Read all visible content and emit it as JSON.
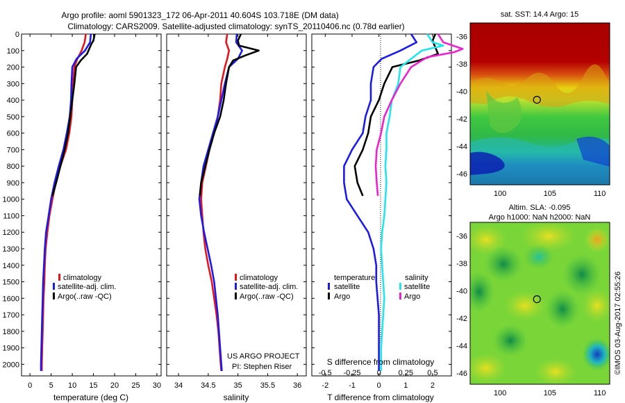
{
  "title": {
    "line1": "Argo profile: aoml 5901323_172 06-Apr-2011 40.604S 103.718E (DM data)",
    "line2": "Climatology: CARS2009. Satellite-adjusted climatology: synTS_20110406.nc (0.78d earlier)"
  },
  "side_text": "©IMOS 03-Aug-2017 02:55:26",
  "colors": {
    "red": "#e8141c",
    "blue": "#1a1aee",
    "black": "#000000",
    "cyan": "#22e6ee",
    "magenta": "#ee22d0"
  },
  "chart_data": [
    {
      "id": "temperature",
      "type": "line",
      "xlabel": "temperature (deg C)",
      "xlim": [
        -2,
        31
      ],
      "xticks": [
        0,
        5,
        10,
        15,
        20,
        25,
        30
      ],
      "xtick_labels": [
        "0",
        "5",
        "10",
        "15",
        "20",
        "25",
        "30"
      ],
      "ylim": [
        0,
        2070
      ],
      "yticks": [
        0,
        100,
        200,
        300,
        400,
        500,
        600,
        700,
        800,
        900,
        1000,
        1100,
        1200,
        1300,
        1400,
        1500,
        1600,
        1700,
        1800,
        1900,
        2000
      ],
      "ytick_labels": [
        "0",
        "100",
        "200",
        "300",
        "400",
        "500",
        "600",
        "700",
        "800",
        "900",
        "1000",
        "1100",
        "1200",
        "1300",
        "1400",
        "1500",
        "1600",
        "1700",
        "1800",
        "1900",
        "2000"
      ],
      "y_reversed": true,
      "legend": {
        "position": "lower-middle",
        "entries": [
          "climatology",
          "satellite-adj. clim.",
          "Argo(..raw -QC)"
        ]
      },
      "series": [
        {
          "name": "climatology",
          "color": "#e8141c",
          "points": [
            [
              13.2,
              0
            ],
            [
              12.9,
              50
            ],
            [
              12.2,
              100
            ],
            [
              11.2,
              150
            ],
            [
              10.5,
              200
            ],
            [
              10.2,
              300
            ],
            [
              10.0,
              400
            ],
            [
              9.8,
              500
            ],
            [
              9.3,
              600
            ],
            [
              8.5,
              700
            ],
            [
              7.2,
              800
            ],
            [
              6.1,
              900
            ],
            [
              5.3,
              1000
            ],
            [
              4.6,
              1100
            ],
            [
              4.1,
              1200
            ],
            [
              3.7,
              1300
            ],
            [
              3.5,
              1400
            ],
            [
              3.4,
              1500
            ],
            [
              3.2,
              1600
            ],
            [
              3.1,
              1700
            ],
            [
              3.0,
              1800
            ],
            [
              2.9,
              1900
            ],
            [
              2.8,
              2000
            ],
            [
              2.8,
              2040
            ]
          ]
        },
        {
          "name": "satellite-adj. clim.",
          "color": "#1a1aee",
          "points": [
            [
              14.4,
              0
            ],
            [
              14.2,
              50
            ],
            [
              13.0,
              100
            ],
            [
              11.0,
              150
            ],
            [
              10.0,
              200
            ],
            [
              9.8,
              300
            ],
            [
              9.7,
              400
            ],
            [
              9.4,
              500
            ],
            [
              8.7,
              600
            ],
            [
              7.9,
              700
            ],
            [
              6.8,
              800
            ],
            [
              5.8,
              900
            ],
            [
              5.0,
              1000
            ],
            [
              4.4,
              1100
            ],
            [
              3.8,
              1200
            ],
            [
              3.5,
              1300
            ],
            [
              3.3,
              1400
            ],
            [
              3.1,
              1500
            ],
            [
              3.0,
              1600
            ],
            [
              2.9,
              1700
            ],
            [
              2.8,
              1800
            ],
            [
              2.7,
              1900
            ],
            [
              2.6,
              2000
            ],
            [
              2.6,
              2040
            ]
          ]
        },
        {
          "name": "Argo(..raw -QC)",
          "color": "#000000",
          "points": [
            [
              15.3,
              0
            ],
            [
              15.0,
              40
            ],
            [
              14.5,
              60
            ],
            [
              13.5,
              120
            ],
            [
              12.0,
              160
            ],
            [
              10.9,
              200
            ],
            [
              10.5,
              300
            ],
            [
              10.0,
              400
            ],
            [
              9.5,
              500
            ],
            [
              9.0,
              600
            ],
            [
              8.2,
              700
            ],
            [
              7.2,
              800
            ],
            [
              6.2,
              900
            ],
            [
              5.3,
              980
            ]
          ]
        }
      ]
    },
    {
      "id": "salinity",
      "type": "line",
      "xlabel": "salinity",
      "xlim": [
        33.8,
        36.15
      ],
      "xticks": [
        34,
        34.5,
        35,
        35.5,
        36
      ],
      "xtick_labels": [
        "34",
        "34.5",
        "35",
        "35.5",
        "36"
      ],
      "ylim": [
        0,
        2070
      ],
      "y_reversed": true,
      "legend": {
        "position": "lower-right",
        "entries": [
          "climatology",
          "satellite-adj. clim.",
          "Argo(..raw -QC)"
        ]
      },
      "annotation": {
        "line1": "US ARGO PROJECT",
        "line2": "PI: Stephen Riser"
      },
      "series": [
        {
          "name": "climatology",
          "color": "#e8141c",
          "points": [
            [
              34.82,
              0
            ],
            [
              34.8,
              50
            ],
            [
              34.85,
              100
            ],
            [
              34.82,
              150
            ],
            [
              34.78,
              200
            ],
            [
              34.72,
              300
            ],
            [
              34.7,
              400
            ],
            [
              34.66,
              500
            ],
            [
              34.6,
              600
            ],
            [
              34.52,
              700
            ],
            [
              34.46,
              800
            ],
            [
              34.4,
              900
            ],
            [
              34.38,
              1000
            ],
            [
              34.4,
              1100
            ],
            [
              34.42,
              1200
            ],
            [
              34.45,
              1300
            ],
            [
              34.5,
              1400
            ],
            [
              34.56,
              1500
            ],
            [
              34.6,
              1600
            ],
            [
              34.64,
              1700
            ],
            [
              34.67,
              1800
            ],
            [
              34.69,
              1900
            ],
            [
              34.71,
              2000
            ],
            [
              34.72,
              2040
            ]
          ]
        },
        {
          "name": "satellite-adj. clim.",
          "color": "#1a1aee",
          "points": [
            [
              34.98,
              0
            ],
            [
              34.97,
              50
            ],
            [
              35.07,
              100
            ],
            [
              35.0,
              150
            ],
            [
              34.85,
              200
            ],
            [
              34.78,
              300
            ],
            [
              34.72,
              400
            ],
            [
              34.66,
              500
            ],
            [
              34.58,
              600
            ],
            [
              34.5,
              700
            ],
            [
              34.42,
              800
            ],
            [
              34.38,
              900
            ],
            [
              34.35,
              1000
            ],
            [
              34.38,
              1100
            ],
            [
              34.43,
              1200
            ],
            [
              34.49,
              1300
            ],
            [
              34.55,
              1400
            ],
            [
              34.6,
              1500
            ],
            [
              34.63,
              1600
            ],
            [
              34.66,
              1700
            ],
            [
              34.68,
              1800
            ],
            [
              34.7,
              1900
            ],
            [
              34.72,
              2000
            ],
            [
              34.73,
              2040
            ]
          ]
        },
        {
          "name": "Argo(..raw -QC)",
          "color": "#000000",
          "points": [
            [
              35.05,
              0
            ],
            [
              35.0,
              40
            ],
            [
              35.02,
              70
            ],
            [
              35.35,
              100
            ],
            [
              35.12,
              130
            ],
            [
              34.92,
              160
            ],
            [
              34.85,
              200
            ],
            [
              34.8,
              300
            ],
            [
              34.76,
              400
            ],
            [
              34.7,
              500
            ],
            [
              34.6,
              600
            ],
            [
              34.52,
              700
            ],
            [
              34.45,
              800
            ],
            [
              34.38,
              900
            ],
            [
              34.36,
              980
            ]
          ]
        }
      ]
    },
    {
      "id": "differences",
      "type": "line",
      "xlabel": "T difference from climatology",
      "xlabel_top": "S difference from climatology",
      "xlim": [
        -2.5,
        2.7
      ],
      "xticks": [
        -2,
        -1,
        0,
        1,
        2
      ],
      "xtick_labels": [
        "-2",
        "-1",
        "0",
        "1",
        "2"
      ],
      "s_ticks": [
        -0.5,
        -0.25,
        0,
        0.25,
        0.5
      ],
      "s_tick_labels": [
        "-0.5",
        "-0.25",
        "0",
        "0.25",
        "0.5"
      ],
      "ylim": [
        0,
        2070
      ],
      "y_reversed": true,
      "legend": {
        "position": "lower-middle",
        "temperature_title": "temperature",
        "salinity_title": "salinity",
        "entries": [
          "satellite",
          "Argo",
          "satellite",
          "Argo"
        ]
      },
      "series": [
        {
          "name": "temperature satellite",
          "color": "#1a1aee",
          "points": [
            [
              1.2,
              0
            ],
            [
              1.4,
              50
            ],
            [
              0.8,
              100
            ],
            [
              0.1,
              150
            ],
            [
              -0.2,
              200
            ],
            [
              -0.3,
              300
            ],
            [
              -0.3,
              400
            ],
            [
              -0.5,
              500
            ],
            [
              -0.6,
              600
            ],
            [
              -1.0,
              700
            ],
            [
              -1.3,
              800
            ],
            [
              -1.3,
              900
            ],
            [
              -1.2,
              1000
            ],
            [
              -0.8,
              1100
            ],
            [
              -0.4,
              1200
            ],
            [
              -0.2,
              1300
            ],
            [
              -0.1,
              1400
            ],
            [
              -0.1,
              1500
            ],
            [
              -0.05,
              1600
            ],
            [
              0,
              1700
            ],
            [
              0,
              1800
            ],
            [
              0,
              1900
            ],
            [
              0,
              2000
            ],
            [
              0,
              2040
            ]
          ]
        },
        {
          "name": "temperature Argo",
          "color": "#000000",
          "points": [
            [
              2.1,
              0
            ],
            [
              2.0,
              40
            ],
            [
              2.2,
              120
            ],
            [
              1.5,
              160
            ],
            [
              0.5,
              200
            ],
            [
              0.2,
              300
            ],
            [
              0,
              400
            ],
            [
              -0.3,
              500
            ],
            [
              -0.4,
              600
            ],
            [
              -0.6,
              700
            ],
            [
              -0.9,
              800
            ],
            [
              -0.8,
              900
            ],
            [
              -0.6,
              980
            ]
          ]
        },
        {
          "name": "salinity satellite",
          "color": "#22e6ee",
          "points": [
            [
              0.45,
              0
            ],
            [
              0.5,
              50
            ],
            [
              0.6,
              70
            ],
            [
              0.4,
              100
            ],
            [
              0.3,
              150
            ],
            [
              0.2,
              200
            ],
            [
              0.18,
              300
            ],
            [
              0.12,
              400
            ],
            [
              0.1,
              500
            ],
            [
              0.07,
              600
            ],
            [
              0.07,
              700
            ],
            [
              0.06,
              800
            ],
            [
              0.07,
              900
            ],
            [
              0.06,
              1000
            ],
            [
              0.05,
              1100
            ],
            [
              0.03,
              1200
            ],
            [
              0.02,
              1300
            ],
            [
              0.03,
              1400
            ],
            [
              0.04,
              1500
            ],
            [
              0.05,
              1600
            ],
            [
              0.04,
              1700
            ],
            [
              0.03,
              1800
            ],
            [
              0.02,
              1900
            ],
            [
              0.02,
              2000
            ],
            [
              0.02,
              2040
            ]
          ]
        },
        {
          "name": "salinity Argo",
          "color": "#ee22d0",
          "points": [
            [
              0.55,
              0
            ],
            [
              0.6,
              50
            ],
            [
              0.78,
              90
            ],
            [
              0.7,
              110
            ],
            [
              0.45,
              140
            ],
            [
              0.3,
              200
            ],
            [
              0.2,
              300
            ],
            [
              0.12,
              400
            ],
            [
              0.05,
              500
            ],
            [
              0.02,
              600
            ],
            [
              -0.02,
              700
            ],
            [
              -0.03,
              800
            ],
            [
              -0.02,
              900
            ],
            [
              -0.01,
              980
            ]
          ]
        }
      ]
    },
    {
      "id": "sst_map",
      "type": "heatmap",
      "title": "sat. SST: 14.4  Argo: 15",
      "xlim": [
        97,
        111
      ],
      "ylim": [
        -46.8,
        -35
      ],
      "xticks": [
        100,
        105,
        110
      ],
      "xtick_labels": [
        "100",
        "105",
        "110"
      ],
      "yticks": [
        -36,
        -38,
        -40,
        -42,
        -44,
        -46
      ],
      "ytick_labels": [
        "-36",
        "-38",
        "-40",
        "-42",
        "-44",
        "-46"
      ],
      "marker": {
        "lon": 103.7,
        "lat": -40.6
      }
    },
    {
      "id": "sla_map",
      "type": "heatmap",
      "title_line1": "Altim. SLA: -0.095",
      "title_line2": "Argo h1000: NaN  h2000: NaN",
      "xlim": [
        97,
        111
      ],
      "ylim": [
        -46.8,
        -35
      ],
      "xticks": [
        100,
        105,
        110
      ],
      "xtick_labels": [
        "100",
        "105",
        "110"
      ],
      "yticks": [
        -36,
        -38,
        -40,
        -42,
        -44,
        -46
      ],
      "ytick_labels": [
        "-36",
        "-38",
        "-40",
        "-42",
        "-44",
        "-46"
      ],
      "marker": {
        "lon": 103.7,
        "lat": -40.6
      }
    }
  ]
}
